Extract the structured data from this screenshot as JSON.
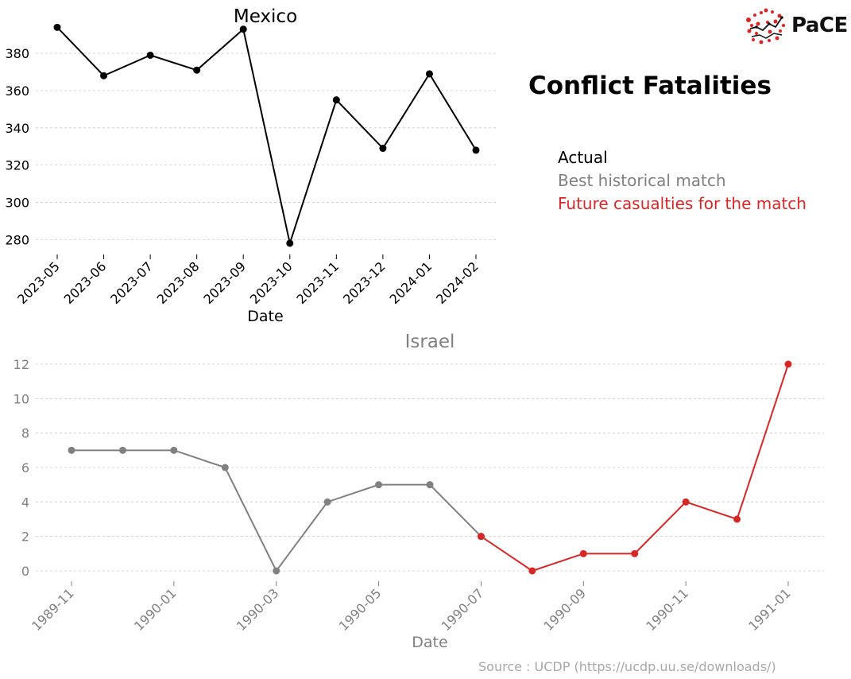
{
  "main_title": "Conflict Fatalities",
  "legend": {
    "actual": "Actual",
    "best_match": "Best historical match",
    "future": "Future casualties for the match"
  },
  "colors": {
    "actual": "#000000",
    "match": "#808080",
    "future": "#d62728",
    "grid": "#c8c8c8",
    "source": "#a8a8a8"
  },
  "logo": {
    "text": "PaCE",
    "icon": "network-dots-icon"
  },
  "source": "Source : UCDP (https://ucdp.uu.se/downloads/)",
  "chart_data": [
    {
      "type": "line",
      "title": "Mexico",
      "xlabel": "Date",
      "ylabel": "",
      "color": "#000000",
      "categories": [
        "2023-05",
        "2023-06",
        "2023-07",
        "2023-08",
        "2023-09",
        "2023-10",
        "2023-11",
        "2023-12",
        "2024-01",
        "2024-02"
      ],
      "values": [
        394,
        368,
        379,
        371,
        393,
        278,
        355,
        329,
        369,
        328
      ],
      "yticks": [
        280,
        300,
        320,
        340,
        360,
        380
      ],
      "ylim": [
        272,
        398
      ],
      "grid": true
    },
    {
      "type": "line",
      "title": "Israel",
      "xlabel": "Date",
      "ylabel": "",
      "months": [
        "1989-11",
        "1989-12",
        "1990-01",
        "1990-02",
        "1990-03",
        "1990-04",
        "1990-05",
        "1990-06",
        "1990-07",
        "1990-08",
        "1990-09",
        "1990-10",
        "1990-11",
        "1990-12",
        "1991-01"
      ],
      "tick_labels": [
        "1989-11",
        "1990-01",
        "1990-03",
        "1990-05",
        "1990-07",
        "1990-09",
        "1990-11",
        "1991-01"
      ],
      "series": [
        {
          "name": "Best historical match",
          "color": "#808080",
          "months": [
            "1989-11",
            "1989-12",
            "1990-01",
            "1990-02",
            "1990-03",
            "1990-04",
            "1990-05",
            "1990-06",
            "1990-07"
          ],
          "values": [
            7,
            7,
            7,
            6,
            0,
            4,
            5,
            5,
            2
          ]
        },
        {
          "name": "Future casualties for the match",
          "color": "#d62728",
          "months": [
            "1990-07",
            "1990-08",
            "1990-09",
            "1990-10",
            "1990-11",
            "1990-12",
            "1991-01"
          ],
          "values": [
            2,
            0,
            1,
            1,
            4,
            3,
            12
          ]
        }
      ],
      "yticks": [
        0,
        2,
        4,
        6,
        8,
        10,
        12
      ],
      "ylim": [
        -0.6,
        12.6
      ],
      "grid": true
    }
  ]
}
